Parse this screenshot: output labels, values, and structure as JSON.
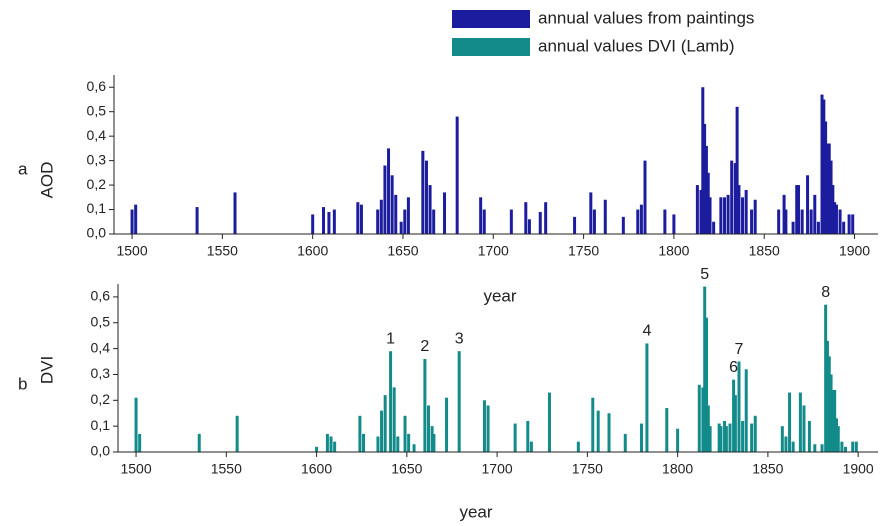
{
  "chart_data": [
    {
      "type": "bar",
      "panel_label": "a",
      "y_label": "AOD",
      "x_label": "year",
      "xlim": [
        1490,
        1913
      ],
      "xticks": [
        1500,
        1550,
        1600,
        1650,
        1700,
        1750,
        1800,
        1850,
        1900
      ],
      "ylim": [
        0,
        0.65
      ],
      "yticks": [
        {
          "value": 0,
          "label": "0,0"
        },
        {
          "value": 0.1,
          "label": "0,1"
        },
        {
          "value": 0.2,
          "label": "0,2"
        },
        {
          "value": 0.3,
          "label": "0,3"
        },
        {
          "value": 0.4,
          "label": "0,4"
        },
        {
          "value": 0.5,
          "label": "0,5"
        },
        {
          "value": 0.6,
          "label": "0,6"
        }
      ],
      "x": [
        1500,
        1502,
        1536,
        1557,
        1600,
        1606,
        1609,
        1612,
        1625,
        1627,
        1636,
        1638,
        1640,
        1642,
        1644,
        1646,
        1649,
        1651,
        1653,
        1661,
        1663,
        1665,
        1667,
        1673,
        1680,
        1693,
        1695,
        1710,
        1718,
        1720,
        1726,
        1729,
        1745,
        1754,
        1756,
        1762,
        1772,
        1780,
        1782,
        1784,
        1795,
        1800,
        1813,
        1815,
        1816,
        1817,
        1818,
        1819,
        1820,
        1822,
        1826,
        1828,
        1830,
        1832,
        1834,
        1835,
        1836,
        1838,
        1840,
        1843,
        1845,
        1858,
        1861,
        1862,
        1866,
        1868,
        1869,
        1871,
        1874,
        1876,
        1878,
        1880,
        1882,
        1883,
        1884,
        1885,
        1886,
        1887,
        1888,
        1889,
        1890,
        1892,
        1894,
        1897,
        1899
      ],
      "series": [
        {
          "name": "annual values from paintings",
          "color": "#1c1c9e",
          "values": [
            0.1,
            0.12,
            0.11,
            0.17,
            0.08,
            0.11,
            0.09,
            0.1,
            0.13,
            0.12,
            0.1,
            0.14,
            0.28,
            0.35,
            0.24,
            0.16,
            0.05,
            0.1,
            0.15,
            0.34,
            0.3,
            0.2,
            0.1,
            0.17,
            0.48,
            0.15,
            0.1,
            0.1,
            0.13,
            0.06,
            0.09,
            0.13,
            0.07,
            0.17,
            0.1,
            0.14,
            0.07,
            0.1,
            0.12,
            0.3,
            0.1,
            0.08,
            0.2,
            0.18,
            0.6,
            0.45,
            0.36,
            0.25,
            0.15,
            0.05,
            0.15,
            0.15,
            0.16,
            0.3,
            0.29,
            0.52,
            0.2,
            0.15,
            0.18,
            0.1,
            0.14,
            0.1,
            0.16,
            0.1,
            0.05,
            0.2,
            0.2,
            0.1,
            0.24,
            0.1,
            0.16,
            0.05,
            0.57,
            0.55,
            0.46,
            0.37,
            0.37,
            0.3,
            0.2,
            0.13,
            0.12,
            0.1,
            0.05,
            0.08,
            0.08
          ]
        }
      ]
    },
    {
      "type": "bar",
      "panel_label": "b",
      "y_label": "DVI",
      "x_label": "year",
      "xlim": [
        1490,
        1911
      ],
      "xticks": [
        1500,
        1550,
        1600,
        1650,
        1700,
        1750,
        1800,
        1850,
        1900
      ],
      "ylim": [
        0,
        0.65
      ],
      "yticks": [
        {
          "value": 0,
          "label": "0,0"
        },
        {
          "value": 0.1,
          "label": "0,1"
        },
        {
          "value": 0.2,
          "label": "0,2"
        },
        {
          "value": 0.3,
          "label": "0,3"
        },
        {
          "value": 0.4,
          "label": "0,4"
        },
        {
          "value": 0.5,
          "label": "0,5"
        },
        {
          "value": 0.6,
          "label": "0,6"
        }
      ],
      "x": [
        1500,
        1502,
        1535,
        1556,
        1600,
        1606,
        1608,
        1610,
        1624,
        1626,
        1634,
        1636,
        1638,
        1641,
        1643,
        1645,
        1649,
        1651,
        1654,
        1660,
        1662,
        1664,
        1665,
        1672,
        1679,
        1693,
        1695,
        1710,
        1717,
        1719,
        1729,
        1745,
        1753,
        1756,
        1762,
        1771,
        1780,
        1783,
        1794,
        1800,
        1812,
        1814,
        1815,
        1816,
        1817,
        1818,
        1823,
        1824,
        1826,
        1827,
        1829,
        1831,
        1832,
        1834,
        1836,
        1838,
        1841,
        1843,
        1858,
        1860,
        1862,
        1864,
        1868,
        1870,
        1873,
        1876,
        1880,
        1882,
        1883,
        1884,
        1885,
        1886,
        1887,
        1888,
        1889,
        1891,
        1893,
        1897,
        1899
      ],
      "series": [
        {
          "name": "annual values DVI (Lamb)",
          "color": "#138b8b",
          "values": [
            0.21,
            0.07,
            0.07,
            0.14,
            0.02,
            0.07,
            0.06,
            0.04,
            0.14,
            0.07,
            0.06,
            0.16,
            0.22,
            0.39,
            0.25,
            0.06,
            0.14,
            0.07,
            0.03,
            0.36,
            0.18,
            0.1,
            0.07,
            0.21,
            0.39,
            0.2,
            0.18,
            0.11,
            0.12,
            0.04,
            0.23,
            0.04,
            0.21,
            0.16,
            0.15,
            0.07,
            0.11,
            0.42,
            0.17,
            0.09,
            0.26,
            0.25,
            0.64,
            0.52,
            0.18,
            0.1,
            0.11,
            0.1,
            0.12,
            0.1,
            0.11,
            0.28,
            0.22,
            0.35,
            0.12,
            0.32,
            0.11,
            0.14,
            0.1,
            0.06,
            0.23,
            0.04,
            0.23,
            0.18,
            0.12,
            0.03,
            0.03,
            0.57,
            0.43,
            0.37,
            0.3,
            0.24,
            0.24,
            0.13,
            0.1,
            0.04,
            0.02,
            0.04,
            0.04
          ]
        }
      ],
      "annotations": [
        {
          "text": "1",
          "x": 1641,
          "y": 0.39
        },
        {
          "text": "2",
          "x": 1660,
          "y": 0.36
        },
        {
          "text": "3",
          "x": 1679,
          "y": 0.39
        },
        {
          "text": "4",
          "x": 1783,
          "y": 0.42
        },
        {
          "text": "5",
          "x": 1815,
          "y": 0.64
        },
        {
          "text": "6",
          "x": 1831,
          "y": 0.28
        },
        {
          "text": "7",
          "x": 1834,
          "y": 0.35
        },
        {
          "text": "8",
          "x": 1882,
          "y": 0.57
        }
      ]
    }
  ]
}
